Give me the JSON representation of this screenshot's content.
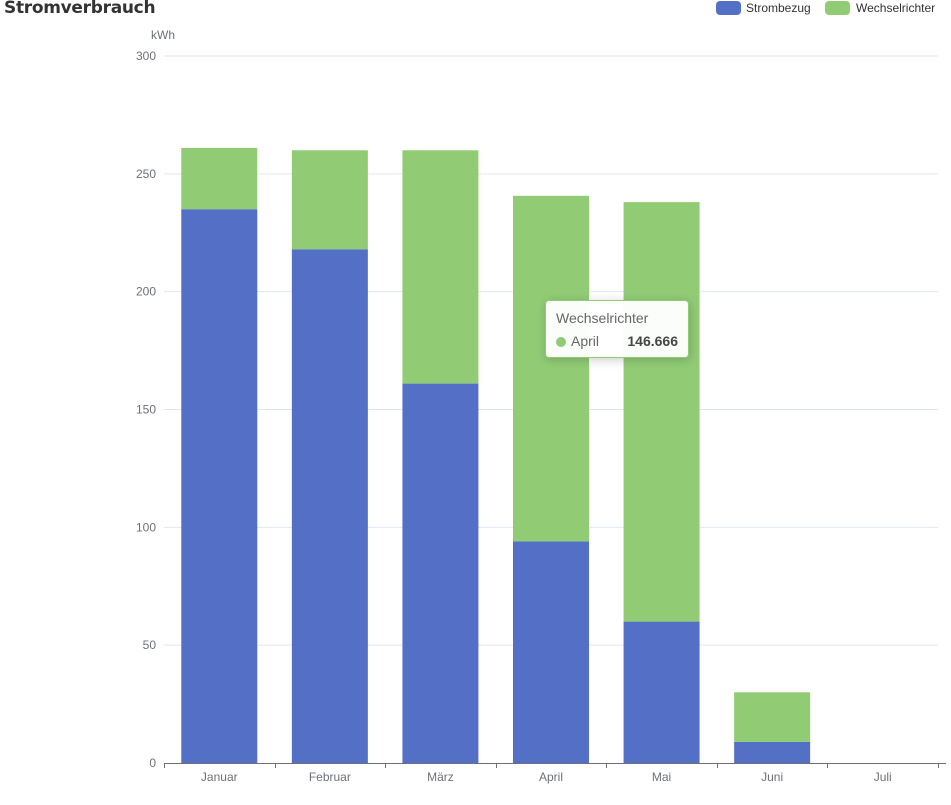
{
  "chart_data": {
    "type": "bar",
    "stacked": true,
    "title": "Stromverbrauch",
    "ylabel": "kWh",
    "xlabel": "",
    "categories": [
      "Januar",
      "Februar",
      "März",
      "April",
      "Mai",
      "Juni",
      "Juli"
    ],
    "ylim": [
      0,
      300
    ],
    "yticks": [
      "0",
      "50",
      "100",
      "150",
      "200",
      "250",
      "300"
    ],
    "grid": true,
    "legend_position": "top-right",
    "series": [
      {
        "name": "Strombezug",
        "color": "#5470c6",
        "values": [
          235,
          218,
          161,
          94,
          60,
          9,
          0
        ]
      },
      {
        "name": "Wechselrichter",
        "color": "#91cc75",
        "values": [
          26,
          42,
          99,
          146.666,
          178,
          21,
          0
        ]
      }
    ],
    "tooltip": {
      "series": "Wechselrichter",
      "category": "April",
      "value": "146.666",
      "color": "#91cc75"
    }
  }
}
